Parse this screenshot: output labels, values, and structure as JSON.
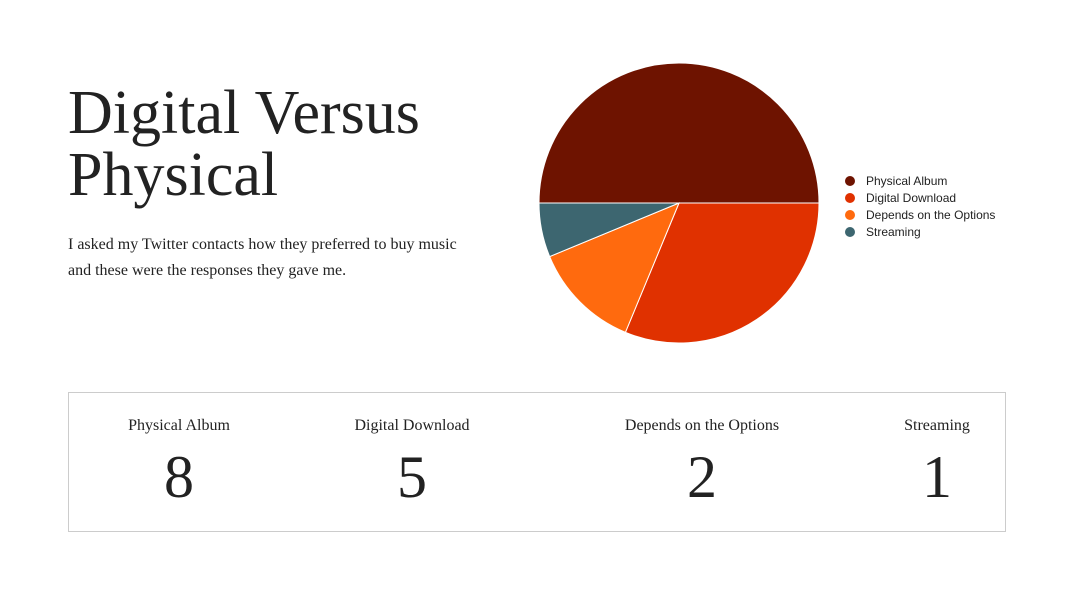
{
  "header": {
    "title": "Digital Versus Physical",
    "description": "I asked my Twitter contacts how they preferred to buy music and these were the responses they gave me."
  },
  "chart_data": {
    "type": "pie",
    "categories": [
      "Physical Album",
      "Digital Download",
      "Depends on the Options",
      "Streaming"
    ],
    "values": [
      8,
      5,
      2,
      1
    ],
    "colors": [
      "#6e1300",
      "#e03100",
      "#ff6a0e",
      "#3d6670"
    ],
    "legend": "right"
  },
  "stats": [
    {
      "label": "Physical Album",
      "value": "8"
    },
    {
      "label": "Digital Download",
      "value": "5"
    },
    {
      "label": "Depends on the Options",
      "value": "2"
    },
    {
      "label": "Streaming",
      "value": "1"
    }
  ]
}
